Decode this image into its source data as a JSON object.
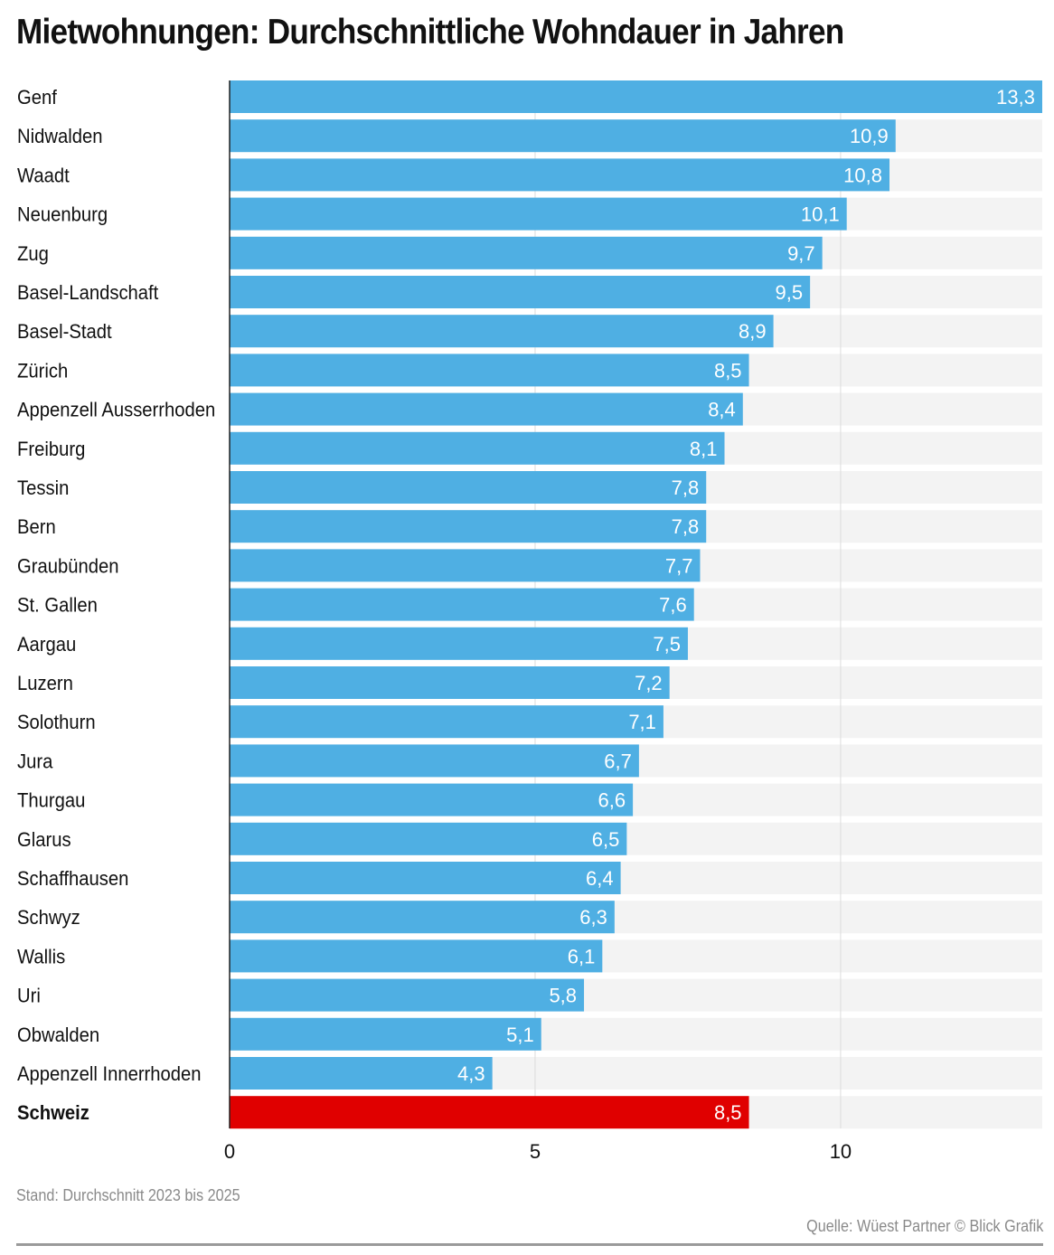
{
  "title": "Mietwohnungen: Durchschnittliche Wohndauer in Jahren",
  "footnote": "Stand: Durchschnitt 2023 bis 2025",
  "source": "Quelle: Wüest Partner © Blick Grafik",
  "colors": {
    "bar": "#4fafe3",
    "highlight": "#e00000",
    "track": "#f3f3f3",
    "grid": "#dcdcdc",
    "axis": "#222222",
    "label": "#111111"
  },
  "chart_data": {
    "type": "bar",
    "orientation": "horizontal",
    "title": "Mietwohnungen: Durchschnittliche Wohndauer in Jahren",
    "xlabel": "",
    "ylabel": "",
    "xlim": [
      0,
      13.3
    ],
    "ticks": [
      0,
      5,
      10
    ],
    "grid": true,
    "categories": [
      "Genf",
      "Nidwalden",
      "Waadt",
      "Neuenburg",
      "Zug",
      "Basel-Landschaft",
      "Basel-Stadt",
      "Zürich",
      "Appenzell Ausserrhoden",
      "Freiburg",
      "Tessin",
      "Bern",
      "Graubünden",
      "St. Gallen",
      "Aargau",
      "Luzern",
      "Solothurn",
      "Jura",
      "Thurgau",
      "Glarus",
      "Schaffhausen",
      "Schwyz",
      "Wallis",
      "Uri",
      "Obwalden",
      "Appenzell Innerrhoden",
      "Schweiz"
    ],
    "values": [
      13.3,
      10.9,
      10.8,
      10.1,
      9.7,
      9.5,
      8.9,
      8.5,
      8.4,
      8.1,
      7.8,
      7.8,
      7.7,
      7.6,
      7.5,
      7.2,
      7.1,
      6.7,
      6.6,
      6.5,
      6.4,
      6.3,
      6.1,
      5.8,
      5.1,
      4.3,
      8.5
    ],
    "value_labels": [
      "13,3",
      "10,9",
      "10,8",
      "10,1",
      "9,7",
      "9,5",
      "8,9",
      "8,5",
      "8,4",
      "8,1",
      "7,8",
      "7,8",
      "7,7",
      "7,6",
      "7,5",
      "7,2",
      "7,1",
      "6,7",
      "6,6",
      "6,5",
      "6,4",
      "6,3",
      "6,1",
      "5,8",
      "5,1",
      "4,3",
      "8,5"
    ],
    "highlight": [
      "Schweiz"
    ]
  }
}
